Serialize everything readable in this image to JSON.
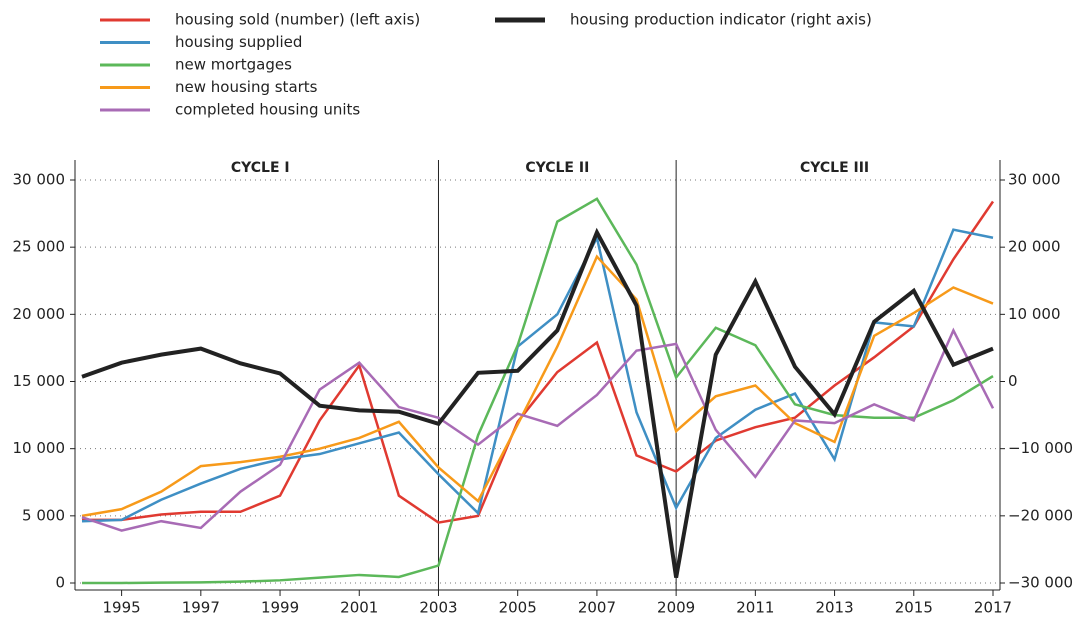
{
  "chart_data": {
    "type": "line",
    "x": [
      1994,
      1995,
      1996,
      1997,
      1998,
      1999,
      2000,
      2001,
      2002,
      2003,
      2004,
      2005,
      2006,
      2007,
      2008,
      2009,
      2010,
      2011,
      2012,
      2013,
      2014,
      2015,
      2016,
      2017
    ],
    "series": [
      {
        "name": "housing sold (number) (left axis)",
        "color": "#e03a31",
        "values": [
          4700,
          4700,
          5100,
          5300,
          5300,
          6500,
          12100,
          16200,
          6500,
          4500,
          5000,
          12000,
          15700,
          17900,
          9500,
          8300,
          10600,
          11600,
          12300,
          14700,
          16800,
          19100,
          24100,
          28400
        ]
      },
      {
        "name": "housing supplied",
        "color": "#3f8fc4",
        "values": [
          4600,
          4700,
          6200,
          7400,
          8500,
          9200,
          9600,
          10400,
          11200,
          8100,
          5200,
          17600,
          20000,
          25700,
          12700,
          5600,
          10800,
          12900,
          14100,
          9200,
          19400,
          19100,
          26300,
          25700
        ]
      },
      {
        "name": "new mortgages",
        "color": "#5cb85a",
        "values": [
          0,
          0,
          30,
          50,
          100,
          200,
          400,
          600,
          450,
          1300,
          11000,
          17700,
          26900,
          28600,
          23700,
          15300,
          19000,
          17700,
          13300,
          12500,
          12300,
          12300,
          13600,
          15400
        ]
      },
      {
        "name": "new housing starts",
        "color": "#f79a1a",
        "values": [
          5000,
          5500,
          6800,
          8700,
          9000,
          9400,
          10000,
          10800,
          12000,
          8600,
          6100,
          11800,
          17600,
          24300,
          21100,
          11300,
          13900,
          14700,
          11900,
          10500,
          18400,
          20100,
          22000,
          20800
        ]
      },
      {
        "name": "completed housing units",
        "color": "#a86bb5",
        "values": [
          4900,
          3900,
          4600,
          4100,
          6800,
          8800,
          14400,
          16400,
          13100,
          12300,
          10300,
          12600,
          11700,
          14000,
          17300,
          17800,
          11400,
          7900,
          12100,
          11900,
          13300,
          12100,
          18800,
          13000
        ]
      },
      {
        "name": "housing production indicator (right axis)",
        "color": "#222222",
        "axis": "y2",
        "values": [
          700,
          2800,
          4000,
          4900,
          2700,
          1200,
          -3600,
          -4300,
          -4500,
          -6300,
          1300,
          1600,
          7600,
          22200,
          11300,
          -29200,
          4000,
          14900,
          2200,
          -4900,
          8900,
          13500,
          2500,
          4900
        ]
      }
    ],
    "xlim": [
      1994,
      2017
    ],
    "xticks": [
      1995,
      1997,
      1999,
      2001,
      2003,
      2005,
      2007,
      2009,
      2011,
      2013,
      2015,
      2017
    ],
    "ylim": [
      0,
      30000
    ],
    "yticks": [
      0,
      {
        "value": 5000,
        "label": "5 000"
      },
      {
        "value": 10000,
        "label": "10 000"
      },
      {
        "value": 15000,
        "label": "15 000"
      },
      {
        "value": 20000,
        "label": "20 000"
      },
      {
        "value": 25000,
        "label": "25 000"
      },
      {
        "value": 30000,
        "label": "30 000"
      }
    ],
    "y2lim": [
      -30000,
      30000
    ],
    "y2ticks": [
      {
        "value": -30000,
        "label": "−30 000"
      },
      {
        "value": -20000,
        "label": "−20 000"
      },
      {
        "value": -10000,
        "label": "−10 000"
      },
      0,
      {
        "value": 10000,
        "label": "10 000"
      },
      {
        "value": 20000,
        "label": "20 000"
      },
      {
        "value": 30000,
        "label": "30 000"
      }
    ],
    "grid": true,
    "cycle_dividers": [
      2003,
      2009
    ],
    "cycles": [
      "CYCLE I",
      "CYCLE II",
      "CYCLE III"
    ]
  }
}
